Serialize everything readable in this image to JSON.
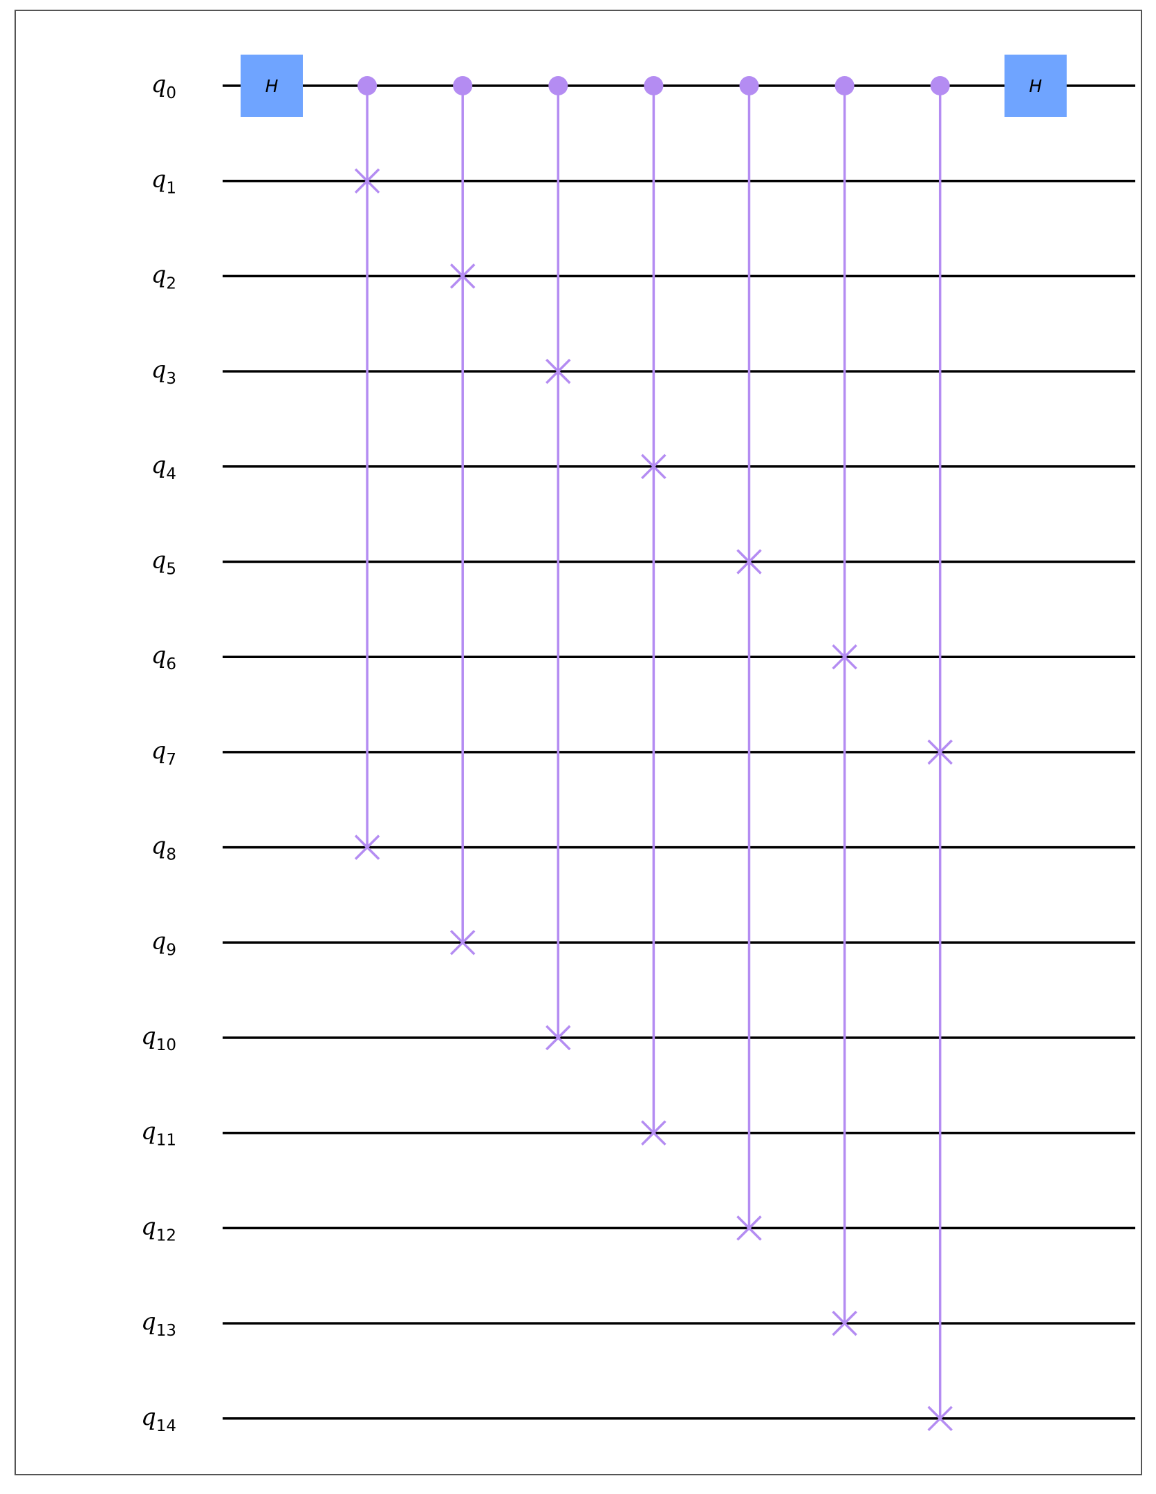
{
  "circuit": {
    "qubits": [
      {
        "name": "q",
        "index": "0"
      },
      {
        "name": "q",
        "index": "1"
      },
      {
        "name": "q",
        "index": "2"
      },
      {
        "name": "q",
        "index": "3"
      },
      {
        "name": "q",
        "index": "4"
      },
      {
        "name": "q",
        "index": "5"
      },
      {
        "name": "q",
        "index": "6"
      },
      {
        "name": "q",
        "index": "7"
      },
      {
        "name": "q",
        "index": "8"
      },
      {
        "name": "q",
        "index": "9"
      },
      {
        "name": "q",
        "index": "10"
      },
      {
        "name": "q",
        "index": "11"
      },
      {
        "name": "q",
        "index": "12"
      },
      {
        "name": "q",
        "index": "13"
      },
      {
        "name": "q",
        "index": "14"
      }
    ],
    "gates": [
      {
        "type": "H",
        "label": "H",
        "qubit": 0,
        "step": 0
      },
      {
        "type": "cswap",
        "control": 0,
        "targets": [
          1,
          8
        ],
        "step": 1
      },
      {
        "type": "cswap",
        "control": 0,
        "targets": [
          2,
          9
        ],
        "step": 2
      },
      {
        "type": "cswap",
        "control": 0,
        "targets": [
          3,
          10
        ],
        "step": 3
      },
      {
        "type": "cswap",
        "control": 0,
        "targets": [
          4,
          11
        ],
        "step": 4
      },
      {
        "type": "cswap",
        "control": 0,
        "targets": [
          5,
          12
        ],
        "step": 5
      },
      {
        "type": "cswap",
        "control": 0,
        "targets": [
          6,
          13
        ],
        "step": 6
      },
      {
        "type": "cswap",
        "control": 0,
        "targets": [
          7,
          14
        ],
        "step": 7
      },
      {
        "type": "H",
        "label": "H",
        "qubit": 0,
        "step": 8
      }
    ],
    "colors": {
      "wire": "#000000",
      "h_gate": "#6fa4ff",
      "swap": "#b48cf2",
      "frame": "#555555"
    }
  }
}
